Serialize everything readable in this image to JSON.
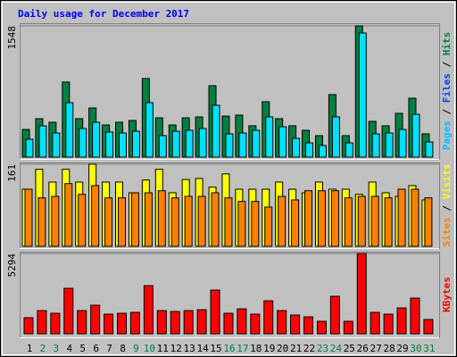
{
  "title": "Daily usage for December 2017",
  "chart_data": [
    {
      "type": "bar",
      "ylim": [
        0,
        1548
      ],
      "yticks": [
        1548
      ],
      "legend": [
        "Pages",
        "Files",
        "Hits"
      ],
      "legend_colors": [
        "#00c0ff",
        "#0040ff",
        "#008040"
      ],
      "series": [
        {
          "color": "#008040",
          "values": [
            326,
            453,
            411,
            885,
            453,
            579,
            379,
            411,
            432,
            927,
            463,
            379,
            463,
            474,
            842,
            484,
            495,
            369,
            653,
            453,
            369,
            316,
            253,
            737,
            253,
            1548,
            421,
            369,
            516,
            695,
            274
          ]
        },
        {
          "color": "#00e0ff",
          "values": [
            211,
            369,
            284,
            642,
            337,
            411,
            295,
            284,
            305,
            642,
            253,
            305,
            316,
            337,
            611,
            274,
            284,
            316,
            474,
            358,
            221,
            168,
            137,
            474,
            168,
            1464,
            274,
            284,
            326,
            505,
            179
          ]
        }
      ]
    },
    {
      "type": "bar",
      "ylim": [
        0,
        161
      ],
      "yticks": [
        161
      ],
      "legend": [
        "Sites",
        "Visits"
      ],
      "legend_colors": [
        "#ff8000",
        "#ffff00"
      ],
      "series": [
        {
          "color": "#ffff00",
          "values": [
            112,
            151,
            126,
            151,
            126,
            161,
            126,
            126,
            105,
            130,
            151,
            105,
            131,
            133,
            116,
            142,
            112,
            112,
            112,
            126,
            112,
            105,
            126,
            112,
            112,
            102,
            126,
            105,
            98,
            119,
            91
          ]
        },
        {
          "color": "#ff8000",
          "values": [
            112,
            95,
            98,
            123,
            102,
            119,
            95,
            95,
            105,
            105,
            109,
            95,
            98,
            98,
            105,
            95,
            88,
            88,
            77,
            98,
            91,
            109,
            109,
            109,
            95,
            98,
            98,
            95,
            112,
            112,
            95
          ]
        }
      ]
    },
    {
      "type": "bar",
      "ylim": [
        0,
        5294
      ],
      "yticks": [
        5294
      ],
      "legend": [
        "KBytes"
      ],
      "legend_colors": [
        "#ff0000"
      ],
      "categories": [
        "1",
        "2",
        "3",
        "4",
        "5",
        "6",
        "7",
        "8",
        "9",
        "10",
        "11",
        "12",
        "13",
        "14",
        "15",
        "16",
        "17",
        "18",
        "19",
        "20",
        "21",
        "22",
        "23",
        "24",
        "25",
        "26",
        "27",
        "28",
        "29",
        "30",
        "31"
      ],
      "label_colors": [
        "#000000",
        "#008040",
        "#008040",
        "#000000",
        "#000000",
        "#000000",
        "#000000",
        "#000000",
        "#008040",
        "#008040",
        "#000000",
        "#000000",
        "#000000",
        "#000000",
        "#000000",
        "#008040",
        "#008040",
        "#000000",
        "#000000",
        "#000000",
        "#000000",
        "#000000",
        "#008040",
        "#008040",
        "#000000",
        "#000000",
        "#000000",
        "#000000",
        "#000000",
        "#008040",
        "#008040"
      ],
      "series": [
        {
          "color": "#ff0000",
          "values": [
            1058,
            1529,
            1352,
            2999,
            1529,
            1882,
            1294,
            1352,
            1411,
            3175,
            1529,
            1470,
            1529,
            1588,
            2881,
            1352,
            1646,
            1294,
            2176,
            1529,
            1235,
            1117,
            823,
            2470,
            823,
            5294,
            1411,
            1294,
            1705,
            2352,
            941
          ]
        }
      ]
    }
  ]
}
